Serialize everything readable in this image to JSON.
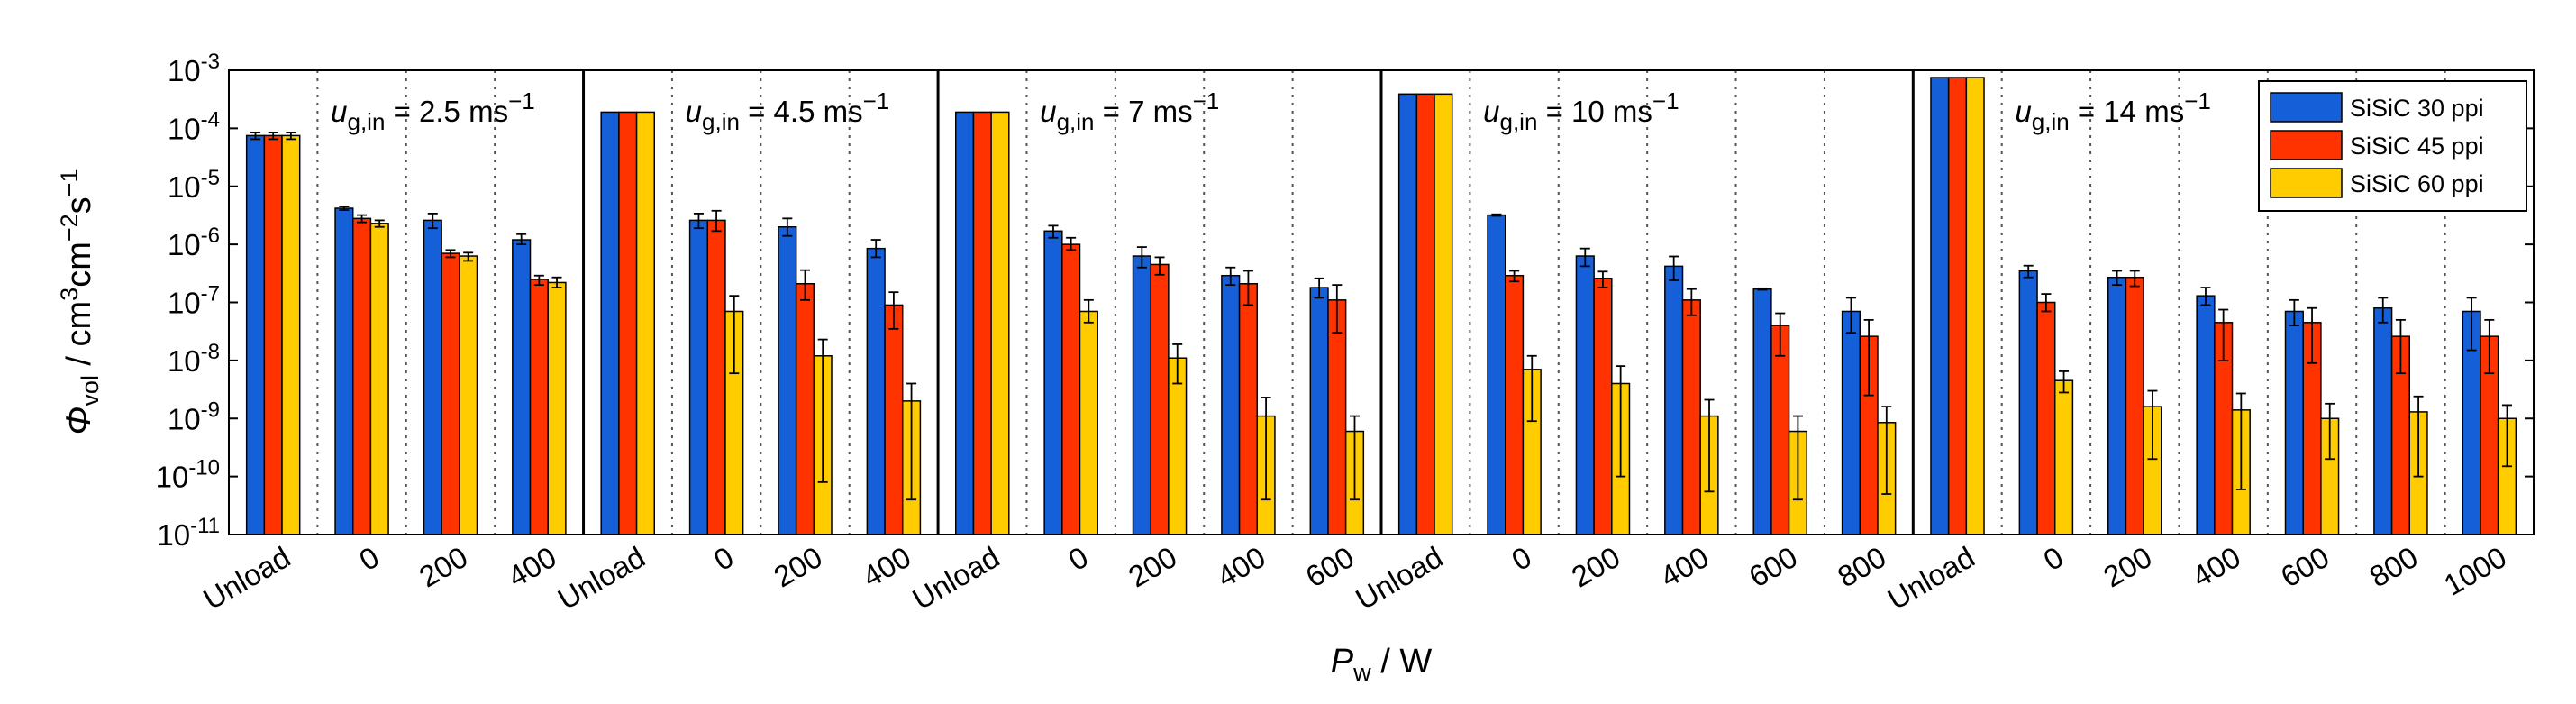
{
  "chart_data": {
    "type": "bar",
    "subtype": "grouped-bar-log-scale-with-error-bars",
    "xlabel": "P",
    "xlabel_sub": "w",
    "xlabel_unit": " / W",
    "ylabel": "Φ",
    "ylabel_sub": "vol",
    "ylabel_unit": " / cm",
    "ylabel_unit_sup1": "3",
    "ylabel_unit_mid": "cm",
    "ylabel_unit_sup2": "−2",
    "ylabel_unit_end": "s",
    "ylabel_unit_sup3": "−1",
    "y_scale": "log",
    "ylim": [
      1e-11,
      0.001
    ],
    "y_ticks": [
      {
        "base": "10",
        "exp": "-11"
      },
      {
        "base": "10",
        "exp": "-10"
      },
      {
        "base": "10",
        "exp": "-9"
      },
      {
        "base": "10",
        "exp": "-8"
      },
      {
        "base": "10",
        "exp": "-7"
      },
      {
        "base": "10",
        "exp": "-6"
      },
      {
        "base": "10",
        "exp": "-5"
      },
      {
        "base": "10",
        "exp": "-4"
      },
      {
        "base": "10",
        "exp": "-3"
      }
    ],
    "legend": {
      "position": "top-right",
      "entries": [
        {
          "label": "SiSiC 30 ppi",
          "color": "#1560D9"
        },
        {
          "label": "SiSiC 45 ppi",
          "color": "#FF3300"
        },
        {
          "label": "SiSiC 60 ppi",
          "color": "#FFCC00"
        }
      ]
    },
    "groups": [
      {
        "title_u": "u",
        "title_sub": "g,in",
        "title_value": " = 2.5 ms",
        "title_sup": "−1",
        "categories": [
          "Unload",
          "0",
          "200",
          "400"
        ],
        "series": [
          {
            "name": "SiSiC 30 ppi",
            "values": [
              7.5e-05,
              4.2e-06,
              2.6e-06,
              1.2e-06
            ],
            "err_low": [
              6.5e-05,
              3.9e-06,
              1.9e-06,
              1e-06
            ],
            "err_high": [
              8.5e-05,
              4.5e-06,
              3.4e-06,
              1.5e-06
            ]
          },
          {
            "name": "SiSiC 45 ppi",
            "values": [
              7.5e-05,
              2.8e-06,
              7e-07,
              2.5e-07
            ],
            "err_low": [
              6.5e-05,
              2.4e-06,
              6e-07,
              2e-07
            ],
            "err_high": [
              8.5e-05,
              3.2e-06,
              8e-07,
              2.9e-07
            ]
          },
          {
            "name": "SiSiC 60 ppi",
            "values": [
              7.5e-05,
              2.3e-06,
              6.3e-07,
              2.2e-07
            ],
            "err_low": [
              6.5e-05,
              2e-06,
              5.2e-07,
              1.8e-07
            ],
            "err_high": [
              8.5e-05,
              2.6e-06,
              7.2e-07,
              2.7e-07
            ]
          }
        ]
      },
      {
        "title_u": "u",
        "title_sub": "g,in",
        "title_value": " = 4.5 ms",
        "title_sup": "−1",
        "categories": [
          "Unload",
          "0",
          "200",
          "400"
        ],
        "series": [
          {
            "name": "SiSiC 30 ppi",
            "values": [
              0.00019,
              2.6e-06,
              2e-06,
              8.5e-07
            ],
            "err_low": [
              null,
              1.9e-06,
              1.4e-06,
              6e-07
            ],
            "err_high": [
              null,
              3.4e-06,
              2.8e-06,
              1.2e-06
            ]
          },
          {
            "name": "SiSiC 45 ppi",
            "values": [
              0.00019,
              2.6e-06,
              2.1e-07,
              9e-08
            ],
            "err_low": [
              null,
              1.7e-06,
              1.1e-07,
              3.5e-08
            ],
            "err_high": [
              null,
              3.8e-06,
              3.6e-07,
              1.5e-07
            ]
          },
          {
            "name": "SiSiC 60 ppi",
            "values": [
              0.00019,
              7e-08,
              1.2e-08,
              2e-09
            ],
            "err_low": [
              null,
              6e-09,
              8e-11,
              4e-11
            ],
            "err_high": [
              null,
              1.3e-07,
              2.3e-08,
              4e-09
            ]
          }
        ]
      },
      {
        "title_u": "u",
        "title_sub": "g,in",
        "title_value": " = 7 ms",
        "title_sup": "−1",
        "categories": [
          "Unload",
          "0",
          "200",
          "400",
          "600"
        ],
        "series": [
          {
            "name": "SiSiC 30 ppi",
            "values": [
              0.00019,
              1.7e-06,
              6.3e-07,
              2.9e-07,
              1.8e-07
            ],
            "err_low": [
              null,
              1.3e-06,
              4e-07,
              2e-07,
              1.2e-07
            ],
            "err_high": [
              null,
              2.1e-06,
              9e-07,
              4e-07,
              2.6e-07
            ]
          },
          {
            "name": "SiSiC 45 ppi",
            "values": [
              0.00019,
              1e-06,
              4.5e-07,
              2.1e-07,
              1.1e-07
            ],
            "err_low": [
              null,
              8e-07,
              3e-07,
              9e-08,
              3e-08
            ],
            "err_high": [
              null,
              1.3e-06,
              6e-07,
              3.5e-07,
              2e-07
            ]
          },
          {
            "name": "SiSiC 60 ppi",
            "values": [
              0.00019,
              7e-08,
              1.1e-08,
              1.1e-09,
              6e-10
            ],
            "err_low": [
              null,
              4.5e-08,
              4e-09,
              4e-11,
              4e-11
            ],
            "err_high": [
              null,
              1.1e-07,
              1.9e-08,
              2.3e-09,
              1.1e-09
            ]
          }
        ]
      },
      {
        "title_u": "u",
        "title_sub": "g,in",
        "title_value": " = 10 ms",
        "title_sup": "−1",
        "categories": [
          "Unload",
          "0",
          "200",
          "400",
          "600",
          "800"
        ],
        "series": [
          {
            "name": "SiSiC 30 ppi",
            "values": [
              0.00039,
              3.2e-06,
              6.3e-07,
              4.2e-07,
              1.7e-07,
              7e-08
            ],
            "err_low": [
              null,
              3.1e-06,
              4.2e-07,
              2.4e-07,
              1.65e-07,
              3e-08
            ],
            "err_high": [
              null,
              3.3e-06,
              8.5e-07,
              6.2e-07,
              1.75e-07,
              1.2e-07
            ]
          },
          {
            "name": "SiSiC 45 ppi",
            "values": [
              0.00039,
              2.9e-07,
              2.6e-07,
              1.1e-07,
              4e-08,
              2.6e-08
            ],
            "err_low": [
              null,
              2.3e-07,
              1.8e-07,
              6e-08,
              1.2e-08,
              2.5e-09
            ],
            "err_high": [
              null,
              3.5e-07,
              3.4e-07,
              1.7e-07,
              6.5e-08,
              5e-08
            ]
          },
          {
            "name": "SiSiC 60 ppi",
            "values": [
              0.00039,
              7e-09,
              4e-09,
              1.1e-09,
              6e-10,
              8.5e-10
            ],
            "err_low": [
              null,
              9e-10,
              1e-10,
              5.5e-11,
              4e-11,
              5e-11
            ],
            "err_high": [
              null,
              1.2e-08,
              8e-09,
              2.1e-09,
              1.1e-09,
              1.6e-09
            ]
          }
        ]
      },
      {
        "title_u": "u",
        "title_sub": "g,in",
        "title_value": " = 14 ms",
        "title_sup": "−1",
        "categories": [
          "Unload",
          "0",
          "200",
          "400",
          "600",
          "800",
          "1000"
        ],
        "series": [
          {
            "name": "SiSiC 30 ppi",
            "values": [
              0.00075,
              3.5e-07,
              2.7e-07,
              1.3e-07,
              7e-08,
              8e-08,
              7e-08
            ],
            "err_low": [
              null,
              2.7e-07,
              2e-07,
              9e-08,
              4e-08,
              4.5e-08,
              1.5e-08
            ],
            "err_high": [
              null,
              4.3e-07,
              3.5e-07,
              1.8e-07,
              1.1e-07,
              1.2e-07,
              1.2e-07
            ]
          },
          {
            "name": "SiSiC 45 ppi",
            "values": [
              0.00075,
              1e-07,
              2.7e-07,
              4.5e-08,
              4.5e-08,
              2.6e-08,
              2.6e-08
            ],
            "err_low": [
              null,
              7e-08,
              1.9e-07,
              1e-08,
              9e-09,
              6e-09,
              6e-09
            ],
            "err_high": [
              null,
              1.4e-07,
              3.5e-07,
              7.5e-08,
              8e-08,
              5e-08,
              5e-08
            ]
          },
          {
            "name": "SiSiC 60 ppi",
            "values": [
              0.00075,
              4.5e-09,
              1.6e-09,
              1.4e-09,
              1e-09,
              1.3e-09,
              1e-09
            ],
            "err_low": [
              null,
              2.8e-09,
              2e-10,
              6e-11,
              2e-10,
              1e-10,
              1.5e-10
            ],
            "err_high": [
              null,
              6.5e-09,
              3e-09,
              2.7e-09,
              1.8e-09,
              2.4e-09,
              1.7e-09
            ]
          }
        ]
      }
    ]
  }
}
